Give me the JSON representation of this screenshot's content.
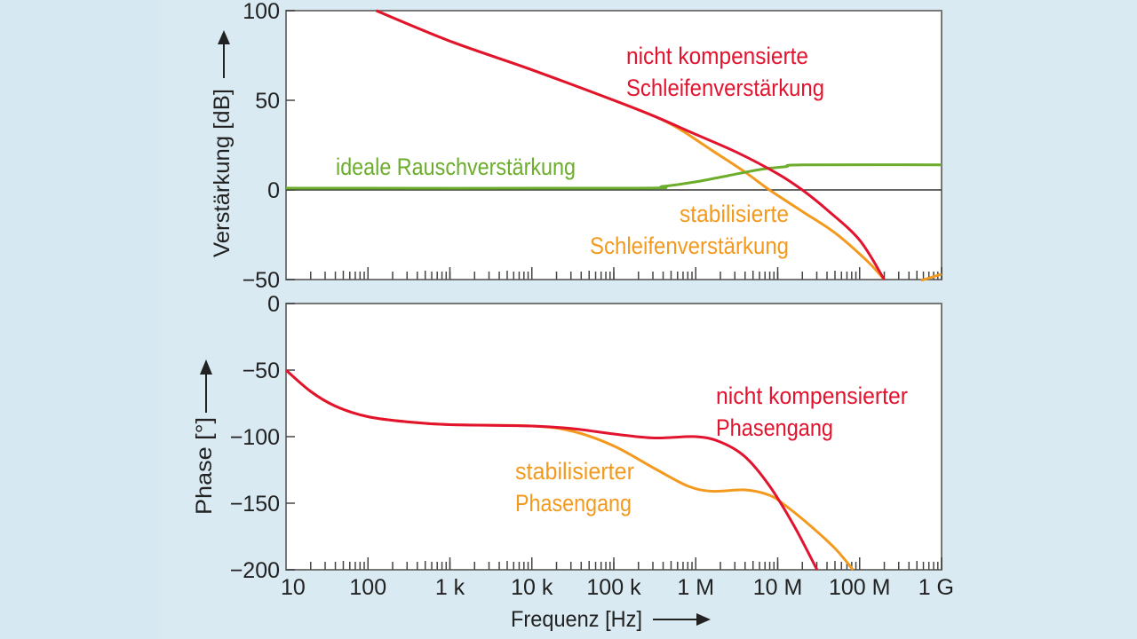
{
  "chart_data": [
    {
      "type": "line",
      "title": "",
      "ylabel": "Verstärkung [dB]",
      "xlabel": "",
      "xscale": "log",
      "xlim_log10_hz": [
        1,
        9
      ],
      "ylim": [
        -50,
        100
      ],
      "yticks": [
        "100",
        "50",
        "0",
        "−50"
      ],
      "ytick_values": [
        100,
        50,
        0,
        -50
      ],
      "x_is_log10_hz": true,
      "series": [
        {
          "name": "nicht kompensierte Schleifenverstärkung",
          "label_lines": [
            "nicht kompensierte",
            "Schleifenverstärkung"
          ],
          "color": "#e2132e",
          "x": [
            2.1,
            3,
            4,
            5,
            5.5,
            6,
            6.5,
            7,
            7.3,
            7.6,
            8,
            8.3
          ],
          "y": [
            100,
            83,
            67,
            50,
            41,
            31,
            21,
            9,
            0,
            -11,
            -28,
            -50
          ]
        },
        {
          "name": "stabilisierte Schleifenverstärkung",
          "label_lines": [
            "stabilisierte",
            "Schleifenverstärkung"
          ],
          "color": "#f39a1e",
          "x": [
            2.1,
            3,
            4,
            5,
            5.5,
            5.8,
            6.2,
            6.6,
            6.9,
            7.3,
            7.7,
            8.1,
            8.3
          ],
          "y": [
            100,
            83,
            67,
            50,
            41,
            34,
            22,
            10,
            0,
            -12,
            -24,
            -40,
            -50
          ]
        },
        {
          "name": "ideale Rauschverstärkung",
          "label_lines": [
            "ideale Rauschverstärkung"
          ],
          "color": "#6cad2b",
          "x": [
            1,
            5.2,
            5.6,
            6,
            6.4,
            6.8,
            7.1,
            7.3,
            9
          ],
          "y": [
            1,
            1,
            2,
            4.5,
            8,
            11.5,
            13,
            14,
            14
          ]
        }
      ],
      "zero_line": 0
    },
    {
      "type": "line",
      "title": "",
      "ylabel": "Phase [°]",
      "xlabel": "Frequenz [Hz]",
      "xscale": "log",
      "xlim_log10_hz": [
        1,
        9
      ],
      "ylim": [
        -200,
        0
      ],
      "yticks": [
        "0",
        "−50",
        "−100",
        "−150",
        "−200"
      ],
      "ytick_values": [
        0,
        -50,
        -100,
        -150,
        -200
      ],
      "xticks": [
        "10",
        "100",
        "1 k",
        "10 k",
        "100 k",
        "1 M",
        "10 M",
        "100 M",
        "1 G"
      ],
      "xtick_values": [
        1,
        2,
        3,
        4,
        5,
        6,
        7,
        8,
        9
      ],
      "series": [
        {
          "name": "nicht kompensierter Phasengang",
          "label_lines": [
            "nicht kompensierter",
            "Phasengang"
          ],
          "color": "#e2132e",
          "x": [
            1,
            1.3,
            1.6,
            2,
            2.5,
            3,
            4,
            4.5,
            5,
            5.5,
            6,
            6.3,
            6.6,
            6.9,
            7.2,
            7.48
          ],
          "y": [
            -50,
            -66,
            -77,
            -85,
            -89,
            -91,
            -92,
            -94,
            -98,
            -101,
            -100,
            -104,
            -115,
            -137,
            -167,
            -200
          ]
        },
        {
          "name": "stabilisierter Phasengang",
          "label_lines": [
            "stabilisierter",
            "Phasengang"
          ],
          "color": "#f39a1e",
          "x": [
            1,
            1.3,
            1.6,
            2,
            2.5,
            3,
            4,
            4.5,
            5,
            5.5,
            5.9,
            6.2,
            6.6,
            6.9,
            7.1,
            7.4,
            7.7,
            7.92
          ],
          "y": [
            -50,
            -66,
            -77,
            -85,
            -89,
            -91,
            -92,
            -96,
            -107,
            -124,
            -137,
            -141,
            -140,
            -144,
            -152,
            -167,
            -184,
            -200
          ]
        }
      ]
    }
  ]
}
